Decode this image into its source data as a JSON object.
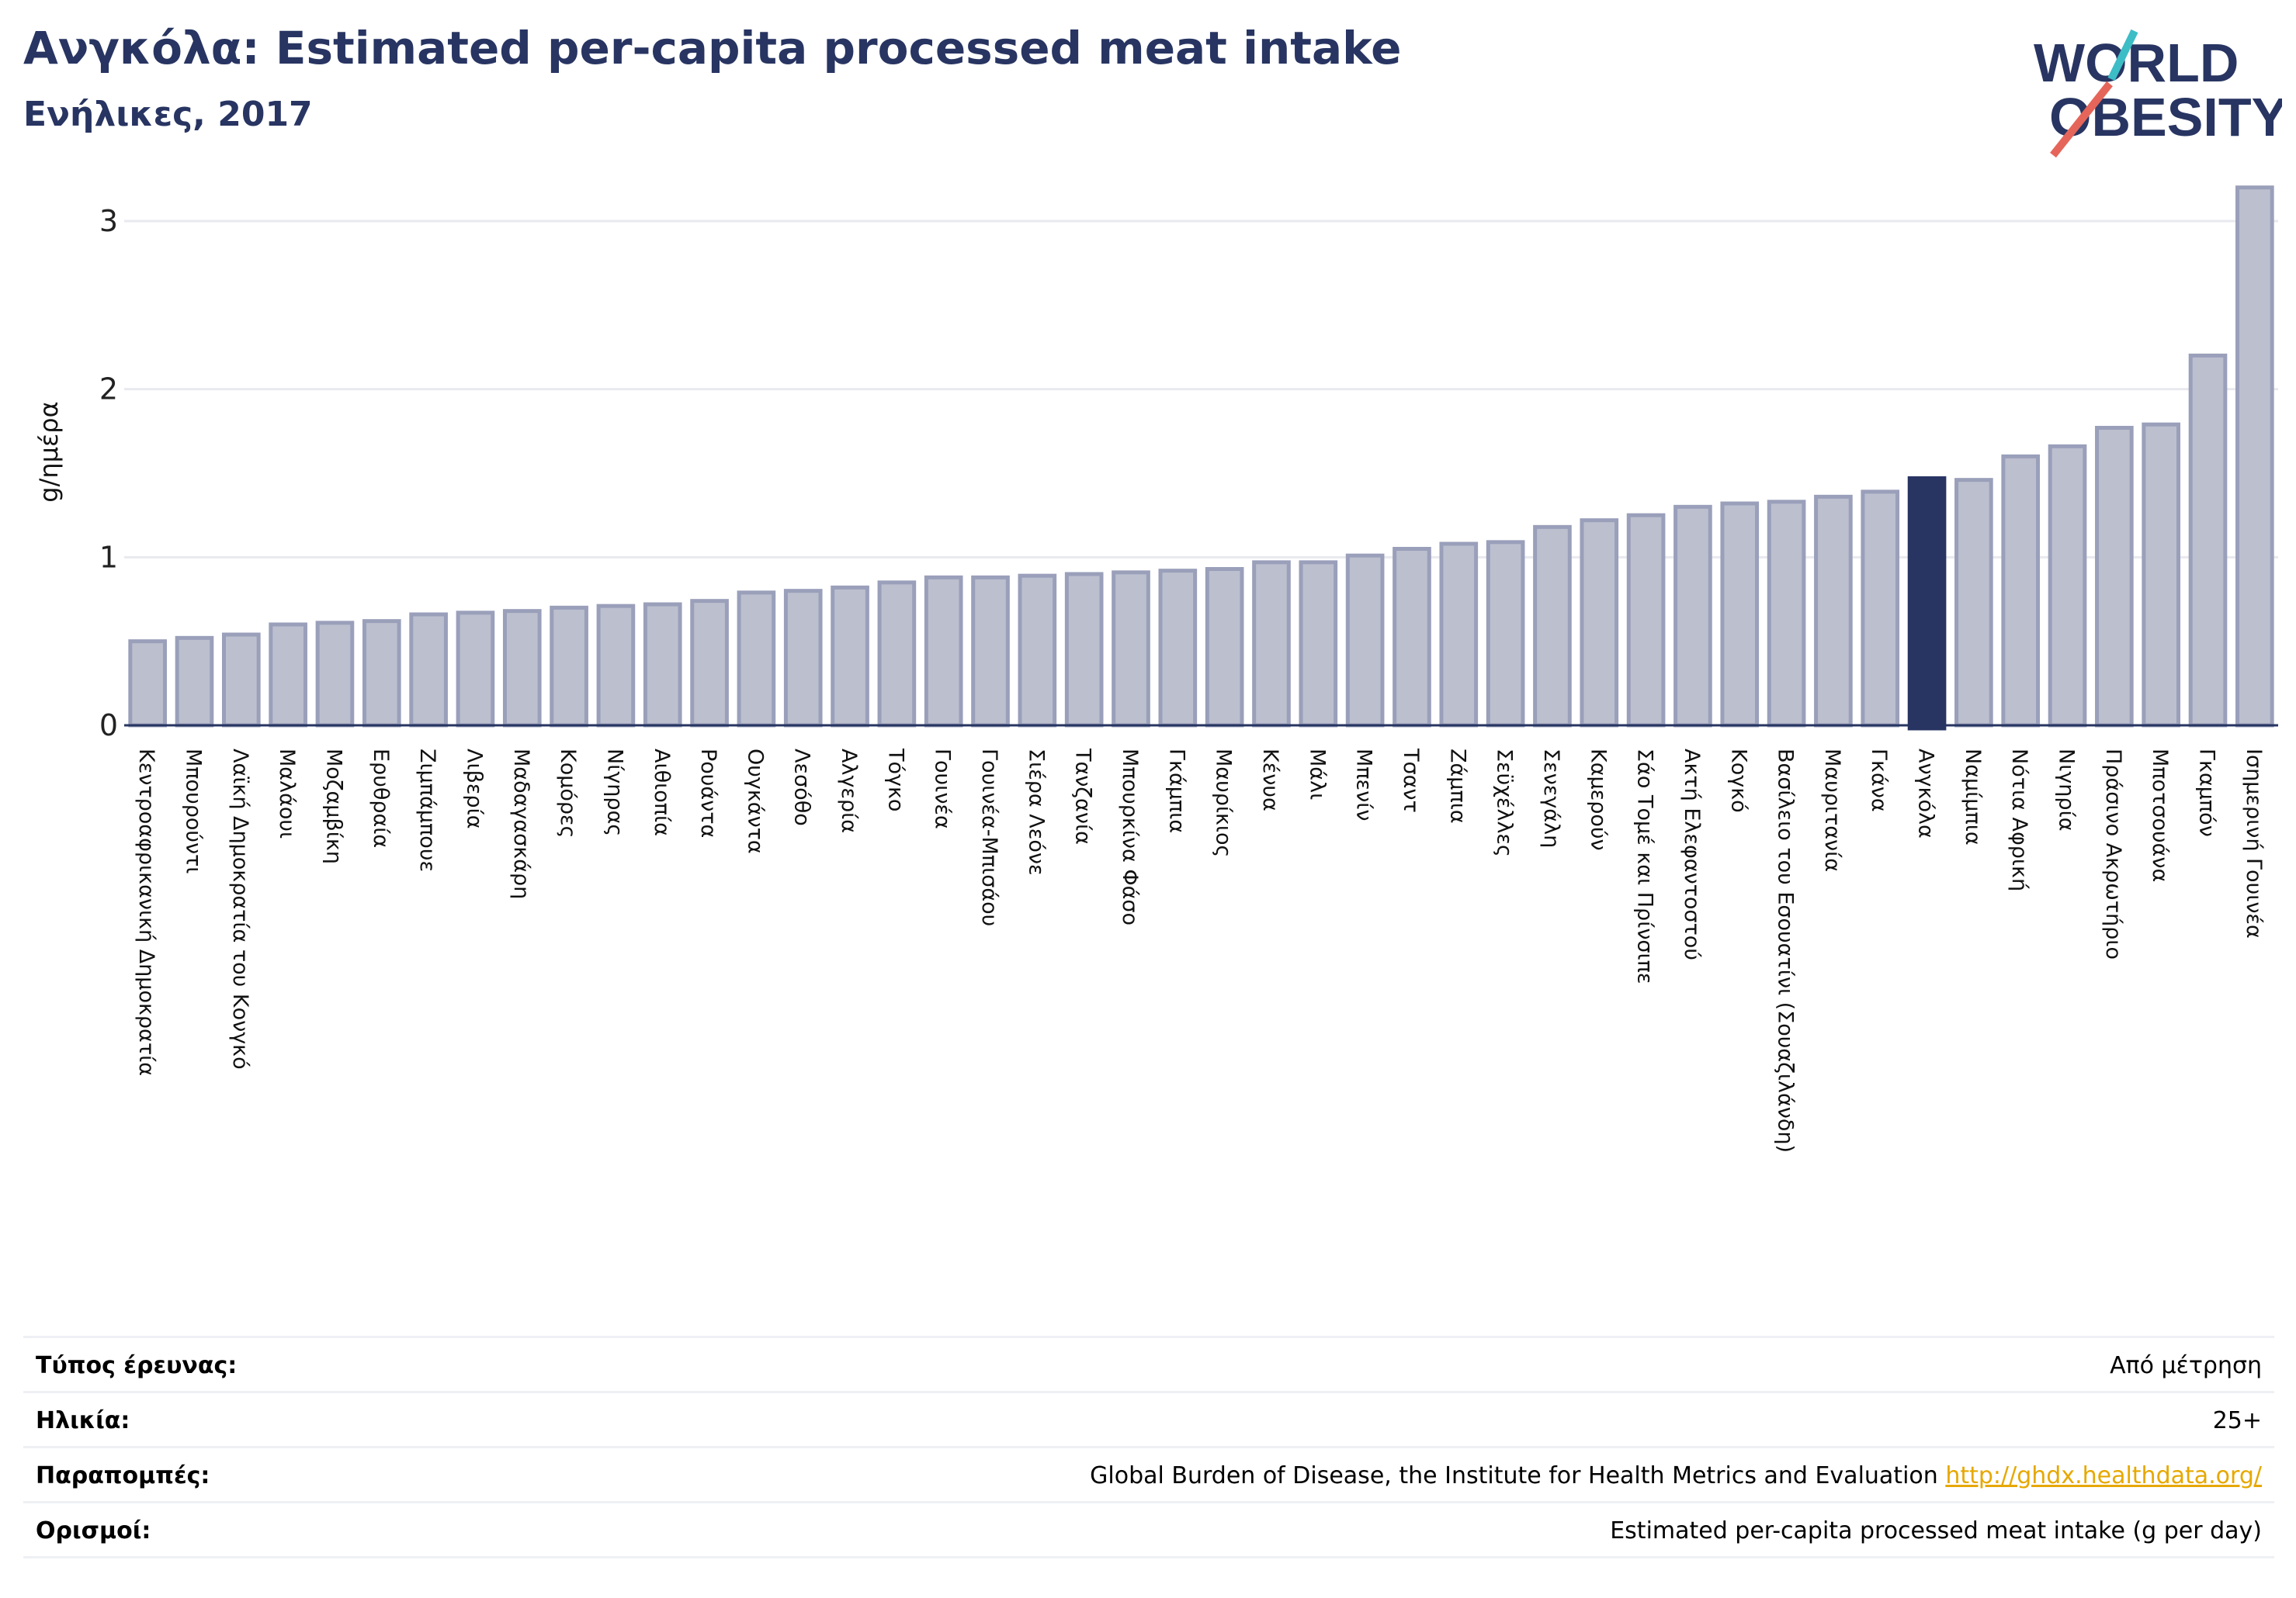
{
  "header": {
    "title": "Ανγκόλα: Estimated per-capita processed meat intake",
    "subtitle": "Ενήλικες, 2017",
    "logo_line1": "WORLD",
    "logo_line2": "OBESITY"
  },
  "colors": {
    "title": "#283562",
    "bar": "#bcbfce",
    "bar_border": "#9a9fba",
    "highlight": "#283562",
    "link": "#e6a800",
    "grid": "#e8eaef",
    "logo_teal": "#3dbdc6",
    "logo_red": "#e5655a"
  },
  "chart_data": {
    "type": "bar",
    "ylabel": "g/ημέρα",
    "ylim": [
      0,
      3.3
    ],
    "yticks": [
      0,
      1,
      2,
      3
    ],
    "grid": true,
    "highlight": "Ανγκόλα",
    "categories": [
      "Κεντροαφρικανική Δημοκρατία",
      "Μπουρούντι",
      "Λαϊκή Δημοκρατία του Κονγκό",
      "Μαλάουι",
      "Μοζαμβίκη",
      "Ερυθραία",
      "Ζιμπάμπουε",
      "Λιβερία",
      "Μαδαγασκάρη",
      "Κομόρες",
      "Νίγηρας",
      "Αιθιοπία",
      "Ρουάντα",
      "Ουγκάντα",
      "Λεσόθο",
      "Αλγερία",
      "Τόγκο",
      "Γουινέα",
      "Γουινέα-Μπισάου",
      "Σιέρα Λεόνε",
      "Τανζανία",
      "Μπουρκίνα Φάσο",
      "Γκάμπια",
      "Μαυρίκιος",
      "Κένυα",
      "Μάλι",
      "Μπενίν",
      "Τσαντ",
      "Ζάμπια",
      "Σεϋχέλλες",
      "Σενεγάλη",
      "Καμερούν",
      "Σάο Τομέ και Πρίνσιπε",
      "Ακτή Ελεφαντοστού",
      "Κογκό",
      "Βασίλειο του Εσουατίνι (Σουαζιλάνδη)",
      "Μαυριτανία",
      "Γκάνα",
      "Ανγκόλα",
      "Ναμίμπια",
      "Νότια Αφρική",
      "Νιγηρία",
      "Πράσινο Ακρωτήριο",
      "Μποτσουάνα",
      "Γκαμπόν",
      "Ισημερινή Γουινέα"
    ],
    "values": [
      0.5,
      0.52,
      0.54,
      0.6,
      0.61,
      0.62,
      0.66,
      0.67,
      0.68,
      0.7,
      0.71,
      0.72,
      0.74,
      0.79,
      0.8,
      0.82,
      0.85,
      0.88,
      0.88,
      0.89,
      0.9,
      0.91,
      0.92,
      0.93,
      0.97,
      0.97,
      1.01,
      1.05,
      1.08,
      1.09,
      1.18,
      1.22,
      1.25,
      1.3,
      1.32,
      1.33,
      1.36,
      1.39,
      1.47,
      1.46,
      1.6,
      1.66,
      1.77,
      1.79,
      2.2,
      3.2
    ]
  },
  "info": {
    "rows": [
      {
        "key": "Τύπος έρευνας:",
        "value": "Από μέτρηση"
      },
      {
        "key": "Ηλικία:",
        "value": "25+"
      },
      {
        "key": "Παραπομπές:",
        "value": "Global Burden of Disease, the Institute for Health Metrics and Evaluation ",
        "link": "http://ghdx.healthdata.org/"
      },
      {
        "key": "Ορισμοί:",
        "value": "Estimated per-capita processed meat intake (g per day)"
      }
    ]
  }
}
